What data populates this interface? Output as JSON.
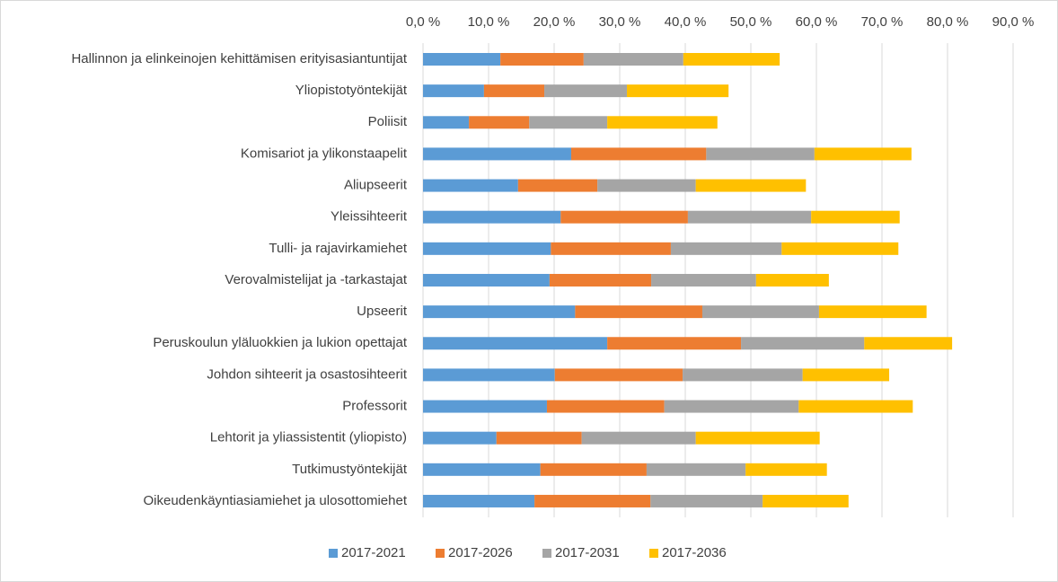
{
  "chart_data": {
    "type": "stacked-bar-horizontal",
    "categories": [
      "Hallinnon ja elinkeinojen kehittämisen erityisasiantuntijat",
      "Yliopistotyöntekijät",
      "Poliisit",
      "Komisariot ja ylikonstaapelit",
      "Aliupseerit",
      "Yleissihteerit",
      "Tulli- ja rajavirkamiehet",
      "Verovalmistelijat ja -tarkastajat",
      "Upseerit",
      "Peruskoulun yläluokkien ja lukion opettajat",
      "Johdon sihteerit ja osastosihteerit",
      "Professorit",
      "Lehtorit ja yliassistentit (yliopisto)",
      "Tutkimustyöntekijät",
      "Oikeudenkäyntiasiamiehet ja ulosottomiehet"
    ],
    "series": [
      {
        "name": "2017-2021",
        "color": "#5b9bd5",
        "values": [
          11.8,
          9.3,
          7.0,
          22.6,
          14.5,
          21.0,
          19.5,
          19.3,
          23.2,
          28.1,
          20.1,
          18.9,
          11.2,
          17.9,
          17.0
        ]
      },
      {
        "name": "2017-2026",
        "color": "#ed7d31",
        "values": [
          12.7,
          9.2,
          9.2,
          20.6,
          12.1,
          19.4,
          18.3,
          15.5,
          19.4,
          20.4,
          19.5,
          17.9,
          13.0,
          16.2,
          17.7
        ]
      },
      {
        "name": "2017-2031",
        "color": "#a5a5a5",
        "values": [
          15.2,
          12.6,
          11.9,
          16.5,
          15.0,
          18.8,
          16.9,
          16.0,
          17.8,
          18.8,
          18.3,
          20.5,
          17.4,
          15.1,
          17.1
        ]
      },
      {
        "name": "2017-2036",
        "color": "#ffc000",
        "values": [
          14.7,
          15.5,
          16.8,
          14.8,
          16.8,
          13.5,
          17.8,
          11.1,
          16.4,
          13.4,
          13.2,
          17.4,
          18.9,
          12.4,
          13.1
        ]
      }
    ],
    "xlim": [
      0,
      90
    ],
    "xticks": [
      {
        "value": 0,
        "label": "0,0 %"
      },
      {
        "value": 10,
        "label": "10,0 %"
      },
      {
        "value": 20,
        "label": "20,0 %"
      },
      {
        "value": 30,
        "label": "30,0 %"
      },
      {
        "value": 40,
        "label": "40,0 %"
      },
      {
        "value": 50,
        "label": "50,0 %"
      },
      {
        "value": 60,
        "label": "60,0 %"
      },
      {
        "value": 70,
        "label": "70,0 %"
      },
      {
        "value": 80,
        "label": "80,0 %"
      },
      {
        "value": 90,
        "label": "90,0 %"
      }
    ],
    "grid": true,
    "legend": "bottom"
  }
}
